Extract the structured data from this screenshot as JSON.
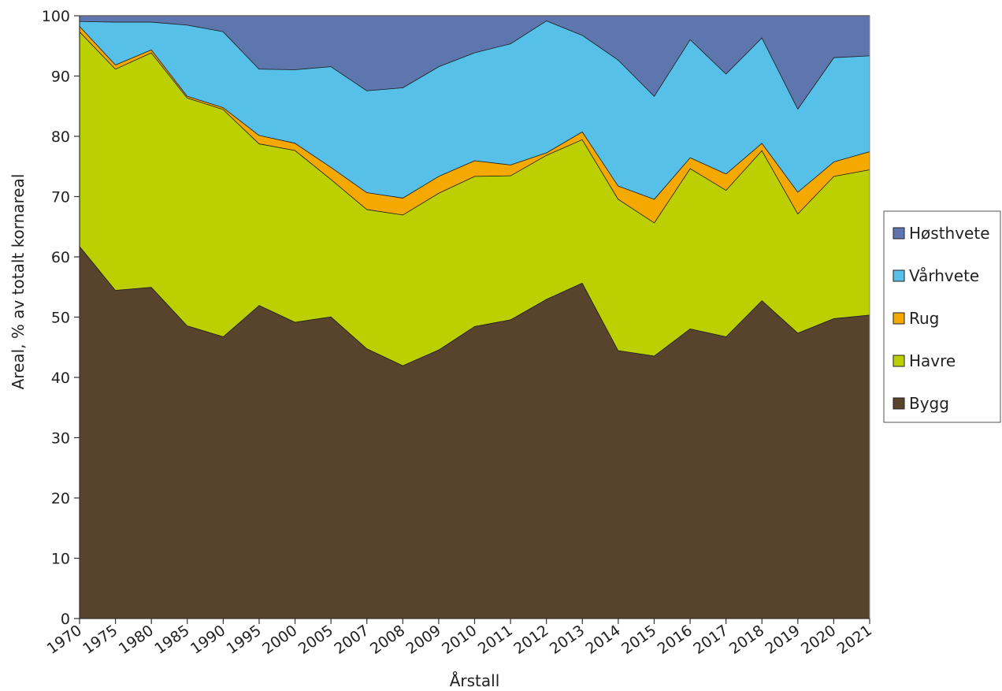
{
  "chart_data": {
    "type": "area",
    "stacked": true,
    "title": "",
    "xlabel": "Årstall",
    "ylabel": "Areal, % av totalt kornareal",
    "ylim": [
      0,
      100
    ],
    "yticks": [
      0,
      10,
      20,
      30,
      40,
      50,
      60,
      70,
      80,
      90,
      100
    ],
    "grid": false,
    "legend_position": "right",
    "categories": [
      "1970",
      "1975",
      "1980",
      "1985",
      "1990",
      "1995",
      "2000",
      "2005",
      "2007",
      "2008",
      "2009",
      "2010",
      "2011",
      "2012",
      "2013",
      "2014",
      "2015",
      "2016",
      "2017",
      "2018",
      "2019",
      "2020",
      "2021"
    ],
    "series": [
      {
        "name": "Bygg",
        "color": "#58432c",
        "values": [
          61.8,
          54.5,
          55.0,
          48.6,
          46.8,
          52.0,
          49.2,
          50.1,
          44.8,
          42.0,
          44.6,
          48.5,
          49.6,
          53.0,
          55.7,
          44.5,
          43.6,
          48.1,
          46.8,
          52.8,
          47.4,
          49.8,
          50.4
        ]
      },
      {
        "name": "Havre",
        "color": "#bccf00",
        "values": [
          35.6,
          36.7,
          38.9,
          37.8,
          37.7,
          26.8,
          28.5,
          22.8,
          23.1,
          25.0,
          26.0,
          24.9,
          23.9,
          23.9,
          23.8,
          25.1,
          22.1,
          26.6,
          24.3,
          24.9,
          19.8,
          23.6,
          24.1
        ]
      },
      {
        "name": "Rug",
        "color": "#f5a800",
        "values": [
          0.9,
          0.7,
          0.5,
          0.3,
          0.3,
          1.4,
          1.2,
          2.0,
          2.8,
          2.8,
          2.8,
          2.6,
          1.8,
          0.4,
          1.3,
          2.2,
          3.9,
          1.8,
          2.7,
          1.2,
          3.6,
          2.4,
          3.0
        ]
      },
      {
        "name": "Vårhvete",
        "color": "#57c0e8",
        "values": [
          0.8,
          7.1,
          4.6,
          11.8,
          12.6,
          11.0,
          12.2,
          16.7,
          16.9,
          18.3,
          18.2,
          17.9,
          20.1,
          21.9,
          16.0,
          20.9,
          17.1,
          19.6,
          16.6,
          17.5,
          13.8,
          17.3,
          15.9
        ]
      },
      {
        "name": "Høsthvete",
        "color": "#5d76ad",
        "values": [
          0.9,
          1.0,
          1.0,
          1.5,
          2.6,
          8.8,
          8.9,
          8.4,
          12.4,
          11.9,
          8.4,
          6.1,
          4.6,
          0.8,
          3.2,
          7.3,
          13.3,
          3.9,
          9.6,
          3.6,
          15.4,
          6.9,
          6.6
        ]
      }
    ]
  }
}
